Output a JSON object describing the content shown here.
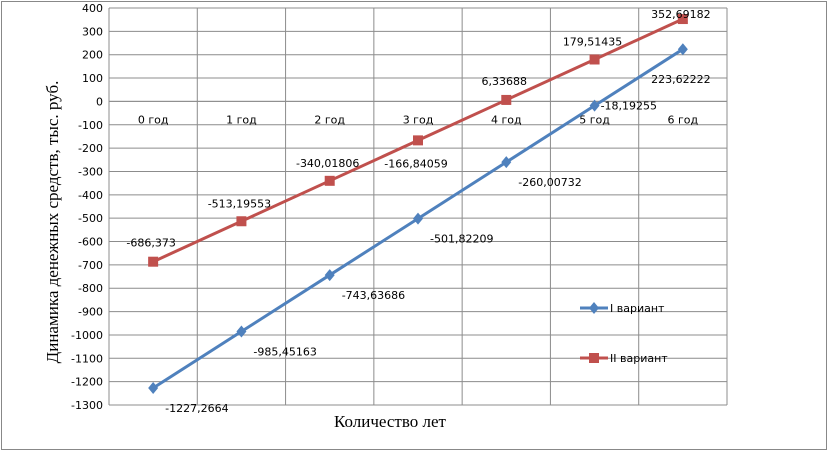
{
  "chart_data": {
    "type": "line",
    "title": "",
    "xlabel": "Количество лет",
    "ylabel": "Динамика денежных средств, тыс. руб.",
    "categories": [
      "0 год",
      "1 год",
      "2 год",
      "3 год",
      "4 год",
      "5 год",
      "6 год"
    ],
    "ylim": [
      -1300,
      400
    ],
    "ytick_step": 100,
    "grid": true,
    "legend_position": "right",
    "series": [
      {
        "name": "I вариант",
        "color": "#4F81BD",
        "marker": "diamond",
        "values": [
          -1227.2664,
          -985.45163,
          -743.63686,
          -501.82209,
          -260.00732,
          -18.19255,
          223.62222
        ],
        "labels": [
          "-1227,2664",
          "-985,45163",
          "-743,63686",
          "-501,82209",
          "-260,00732",
          "-18,19255",
          "223,62222"
        ]
      },
      {
        "name": "II вариант",
        "color": "#C0504D",
        "marker": "square",
        "values": [
          -686.373,
          -513.19553,
          -340.01806,
          -166.84059,
          6.33688,
          179.51435,
          352.69182
        ],
        "labels": [
          "-686,373",
          "-513,19553",
          "-340,01806",
          "-166,84059",
          "6,33688",
          "179,51435",
          "352,69182"
        ]
      }
    ]
  }
}
